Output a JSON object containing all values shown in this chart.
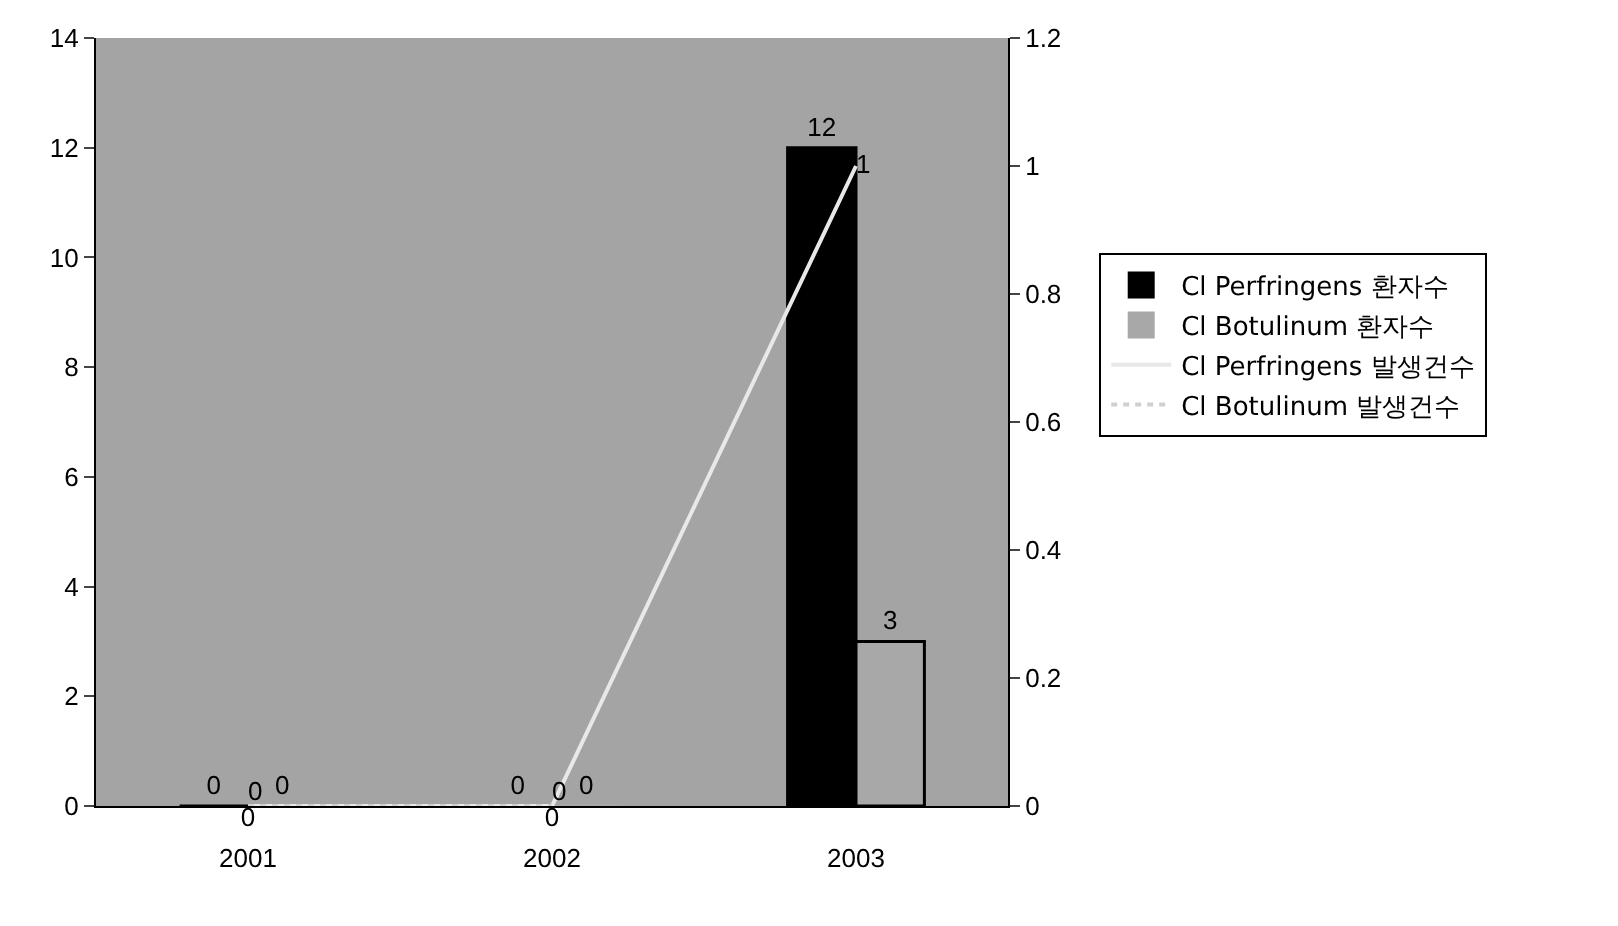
{
  "chart_data": {
    "type": "bar",
    "categories": [
      "2001",
      "2002",
      "2003"
    ],
    "series": [
      {
        "name": "Cl Perfringens 환자수",
        "color": "#000000",
        "values": [
          0,
          0,
          12
        ]
      },
      {
        "name": "Cl Botulinum 환자수",
        "color": "#a8a8a8",
        "values": [
          0,
          0,
          3
        ]
      },
      {
        "name": "Cl Perfringens 발생건수",
        "type": "line",
        "axis": "y2",
        "color": "#e8e8e8",
        "line_style": "solid",
        "values": [
          0,
          0,
          1
        ]
      },
      {
        "name": "Cl Botulinum 발생건수",
        "type": "line",
        "axis": "y2",
        "color": "#d0d0d0",
        "line_style": "dotted",
        "values": [
          0,
          0,
          null
        ]
      }
    ],
    "ylim": [
      0,
      14
    ],
    "yticks": [
      0,
      2,
      4,
      6,
      8,
      10,
      12,
      14
    ],
    "y2lim": [
      0,
      1.2
    ],
    "y2ticks": [
      0,
      0.2,
      0.4,
      0.6,
      0.8,
      1,
      1.2
    ],
    "data_labels": true,
    "grid": false,
    "legend": "right",
    "marker": "none"
  }
}
